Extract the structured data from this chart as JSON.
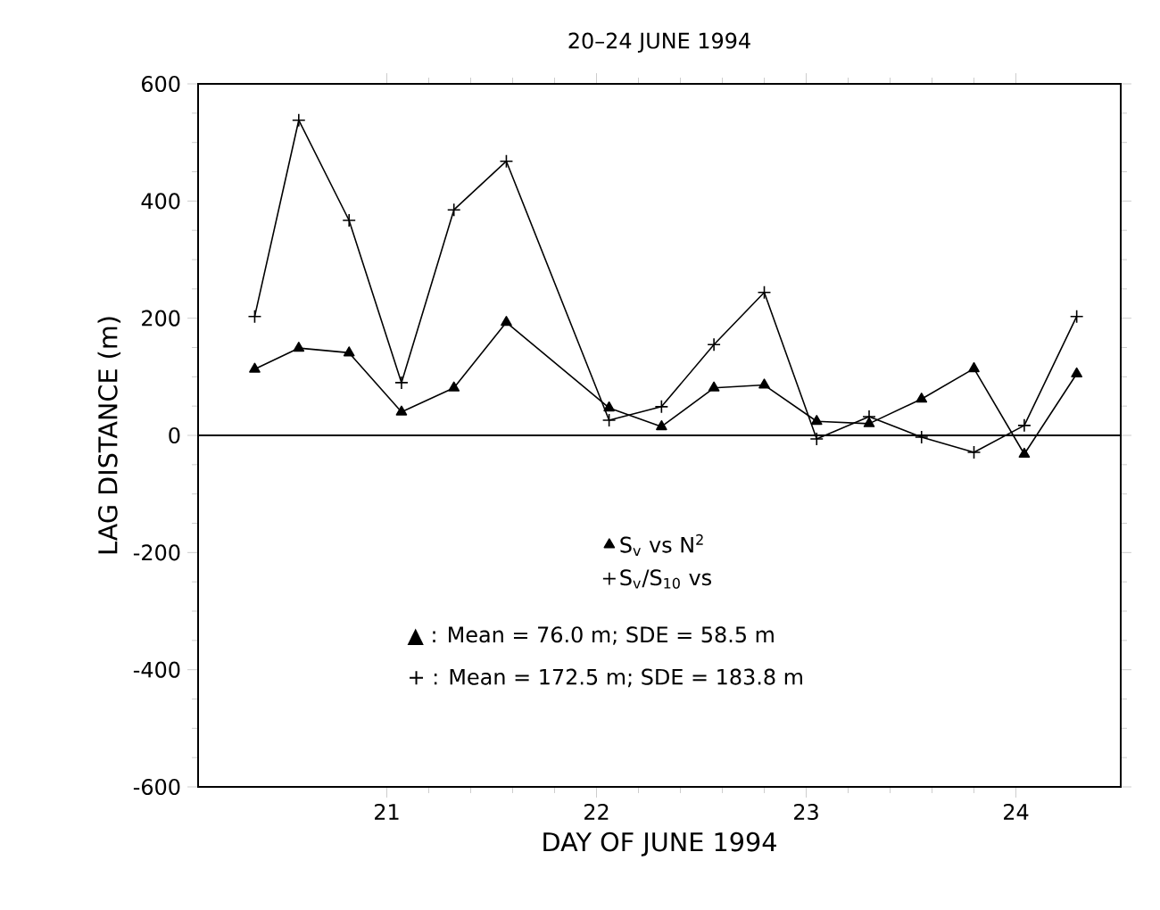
{
  "chart_data": {
    "type": "line",
    "title": "20–24 JUNE 1994",
    "xlabel": "DAY OF JUNE 1994",
    "ylabel": "LAG DISTANCE (m)",
    "x": [
      20.37,
      20.58,
      20.82,
      21.07,
      21.32,
      21.57,
      22.06,
      22.31,
      22.56,
      22.8,
      23.05,
      23.3,
      23.55,
      23.8,
      24.04,
      24.29
    ],
    "series": [
      {
        "name": "S$_{v}$ vs N$^{2}$",
        "color": "#000000",
        "marker": "triangle",
        "values": [
          113,
          149,
          141,
          40,
          81,
          193,
          47,
          15,
          81,
          86,
          24,
          20,
          62,
          114,
          -32,
          105
        ]
      },
      {
        "name": "S$_{v}$/S$_{10}$ vs",
        "color": "#000000",
        "marker": "cross",
        "values": [
          203,
          538,
          367,
          90,
          385,
          468,
          26,
          49,
          155,
          244,
          -6,
          32,
          -3,
          -29,
          17,
          203
        ]
      }
    ],
    "xlim": [
      20.1,
      24.5
    ],
    "ylim": [
      -600,
      600
    ],
    "xticks": [
      21,
      22,
      23,
      24
    ],
    "yticks": [
      -600,
      -400,
      -200,
      0,
      200,
      400,
      600
    ],
    "ref_lines": [
      {
        "axis": "y",
        "value": 0
      }
    ],
    "legend": "center",
    "line_style": "solid",
    "grid": false,
    "annotations": [
      "▲ : Mean = 76.0 m; SDE = 58.5 m",
      "+ : Mean = 172.5 m; SDE = 183.8 m"
    ]
  }
}
